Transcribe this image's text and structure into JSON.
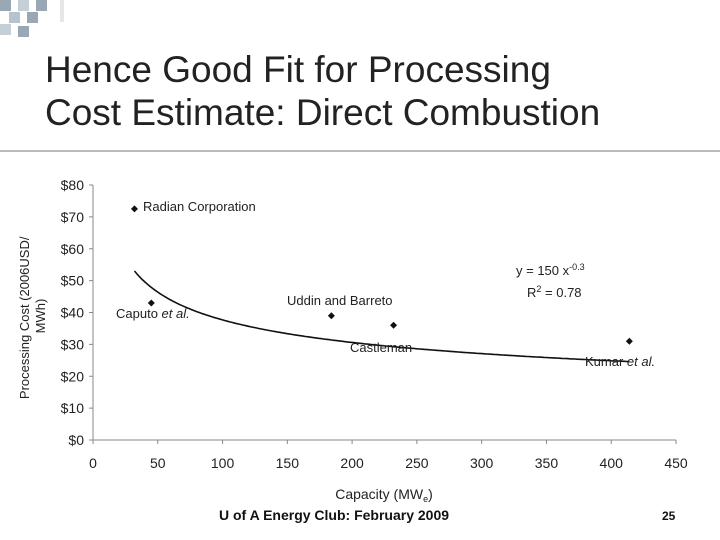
{
  "slide": {
    "title_line1": "Hence Good Fit for Processing",
    "title_line2": "Cost Estimate: Direct Combustion",
    "footer": "U of A Energy Club: February 2009",
    "page_number": "25"
  },
  "colors": {
    "title": "#222222",
    "checker": "#9aa8b6",
    "rule": "#bcbcbc"
  },
  "chart_data": {
    "type": "scatter",
    "xlabel": "Capacity (MWe)",
    "ylabel": "Processing Cost (2006USD/MWh)",
    "xlim": [
      0,
      450
    ],
    "ylim": [
      0,
      80
    ],
    "xticks": [
      "0",
      "50",
      "100",
      "150",
      "200",
      "250",
      "300",
      "350",
      "400",
      "450"
    ],
    "yticks": [
      "$0",
      "$10",
      "$20",
      "$30",
      "$40",
      "$50",
      "$60",
      "$70",
      "$80"
    ],
    "points": [
      {
        "label": "Radian Corporation",
        "x": 32,
        "y": 72.5
      },
      {
        "label": "Caputo et al.",
        "x": 45,
        "y": 43
      },
      {
        "label": "Uddin and Barreto",
        "x": 184,
        "y": 39
      },
      {
        "label": "Castleman",
        "x": 232,
        "y": 36
      },
      {
        "label": "Kumar et al.",
        "x": 414,
        "y": 31
      }
    ],
    "fit": {
      "formula": "y = 150 x^-0.3",
      "equation_text": "y = 150 x",
      "exponent": "-0.3",
      "r2_text": "R",
      "r2_sup": "2",
      "r2_value": " = 0.78",
      "coef": 150,
      "power": -0.3,
      "x_range": [
        32,
        414
      ]
    }
  }
}
